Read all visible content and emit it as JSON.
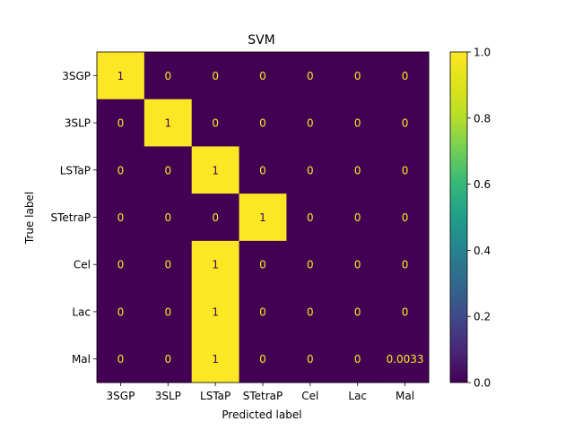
{
  "chart_data": {
    "type": "heatmap",
    "title": "SVM",
    "xlabel": "Predicted label",
    "ylabel": "True label",
    "x_categories": [
      "3SGP",
      "3SLP",
      "LSTaP",
      "STetraP",
      "Cel",
      "Lac",
      "Mal"
    ],
    "y_categories": [
      "3SGP",
      "3SLP",
      "LSTaP",
      "STetraP",
      "Cel",
      "Lac",
      "Mal"
    ],
    "matrix": [
      [
        1,
        0,
        0,
        0,
        0,
        0,
        0
      ],
      [
        0,
        1,
        0,
        0,
        0,
        0,
        0
      ],
      [
        0,
        0,
        1,
        0,
        0,
        0,
        0
      ],
      [
        0,
        0,
        0,
        1,
        0,
        0,
        0
      ],
      [
        0,
        0,
        1,
        0,
        0,
        0,
        0
      ],
      [
        0,
        0,
        1,
        0,
        0,
        0,
        0
      ],
      [
        0,
        0,
        1,
        0,
        0,
        0,
        0.0033
      ]
    ],
    "cell_labels": [
      [
        "1",
        "0",
        "0",
        "0",
        "0",
        "0",
        "0"
      ],
      [
        "0",
        "1",
        "0",
        "0",
        "0",
        "0",
        "0"
      ],
      [
        "0",
        "0",
        "1",
        "0",
        "0",
        "0",
        "0"
      ],
      [
        "0",
        "0",
        "0",
        "1",
        "0",
        "0",
        "0"
      ],
      [
        "0",
        "0",
        "1",
        "0",
        "0",
        "0",
        "0"
      ],
      [
        "0",
        "0",
        "1",
        "0",
        "0",
        "0",
        "0"
      ],
      [
        "0",
        "0",
        "1",
        "0",
        "0",
        "0",
        "0.0033"
      ]
    ],
    "colorbar": {
      "colormap": "viridis",
      "range": [
        0.0,
        1.0
      ],
      "ticks": [
        0.0,
        0.2,
        0.4,
        0.6,
        0.8,
        1.0
      ],
      "tick_labels": [
        "0.0",
        "0.2",
        "0.4",
        "0.6",
        "0.8",
        "1.0"
      ]
    },
    "colors": {
      "low": "#440154",
      "high": "#fde725",
      "text_on_low": "#fde725",
      "text_on_high": "#440154"
    }
  }
}
